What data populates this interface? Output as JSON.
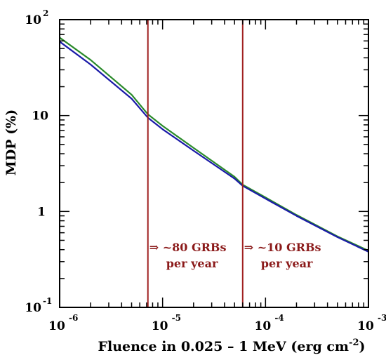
{
  "chart_data": {
    "type": "line",
    "xscale": "log",
    "yscale": "log",
    "xlim": [
      1e-06,
      0.001
    ],
    "ylim": [
      0.1,
      100
    ],
    "xlabel": "Fluence in 0.025 – 1 MeV (erg cm",
    "xlabel_exp": "-2",
    "xlabel_close": ")",
    "ylabel": "MDP (%)",
    "grid": false,
    "x_ticks": [
      {
        "value": 1e-06,
        "base": "10",
        "exp": "-6"
      },
      {
        "value": 1e-05,
        "base": "10",
        "exp": "-5"
      },
      {
        "value": 0.0001,
        "base": "10",
        "exp": "-4"
      },
      {
        "value": 0.001,
        "base": "10",
        "exp": "-3"
      }
    ],
    "y_ticks": [
      {
        "value": 0.1,
        "base": "10",
        "exp": "-1"
      },
      {
        "value": 1,
        "base": "1",
        "exp": ""
      },
      {
        "value": 10,
        "base": "10",
        "exp": ""
      },
      {
        "value": 100,
        "base": "10",
        "exp": "2"
      }
    ],
    "series": [
      {
        "color": "#2a8a2a",
        "x": [
          1e-06,
          2e-06,
          5e-06,
          7.2e-06,
          1e-05,
          2e-05,
          5e-05,
          6e-05,
          0.0001,
          0.0002,
          0.0005,
          0.001
        ],
        "y": [
          65,
          38,
          16.5,
          10.3,
          7.8,
          4.6,
          2.3,
          1.9,
          1.4,
          0.92,
          0.55,
          0.39
        ]
      },
      {
        "color": "#1a1aa8",
        "x": [
          1e-06,
          2e-06,
          5e-06,
          7.2e-06,
          1e-05,
          2e-05,
          5e-05,
          6e-05,
          0.0001,
          0.0002,
          0.0005,
          0.001
        ],
        "y": [
          59,
          34,
          15.0,
          9.5,
          7.2,
          4.3,
          2.2,
          1.85,
          1.36,
          0.9,
          0.54,
          0.38
        ]
      }
    ],
    "vlines": [
      {
        "x": 7.2e-06,
        "color": "#a02020"
      },
      {
        "x": 6e-05,
        "color": "#a02020"
      }
    ],
    "annotations": [
      {
        "line1": "⇒ ~80 GRBs",
        "line2": "per year",
        "x": 7.2e-06
      },
      {
        "line1": "⇒ ~10 GRBs",
        "line2": "per year",
        "x": 6e-05
      }
    ]
  },
  "colors": {
    "axis": "#000000",
    "annotation": "#8b1a1a"
  }
}
